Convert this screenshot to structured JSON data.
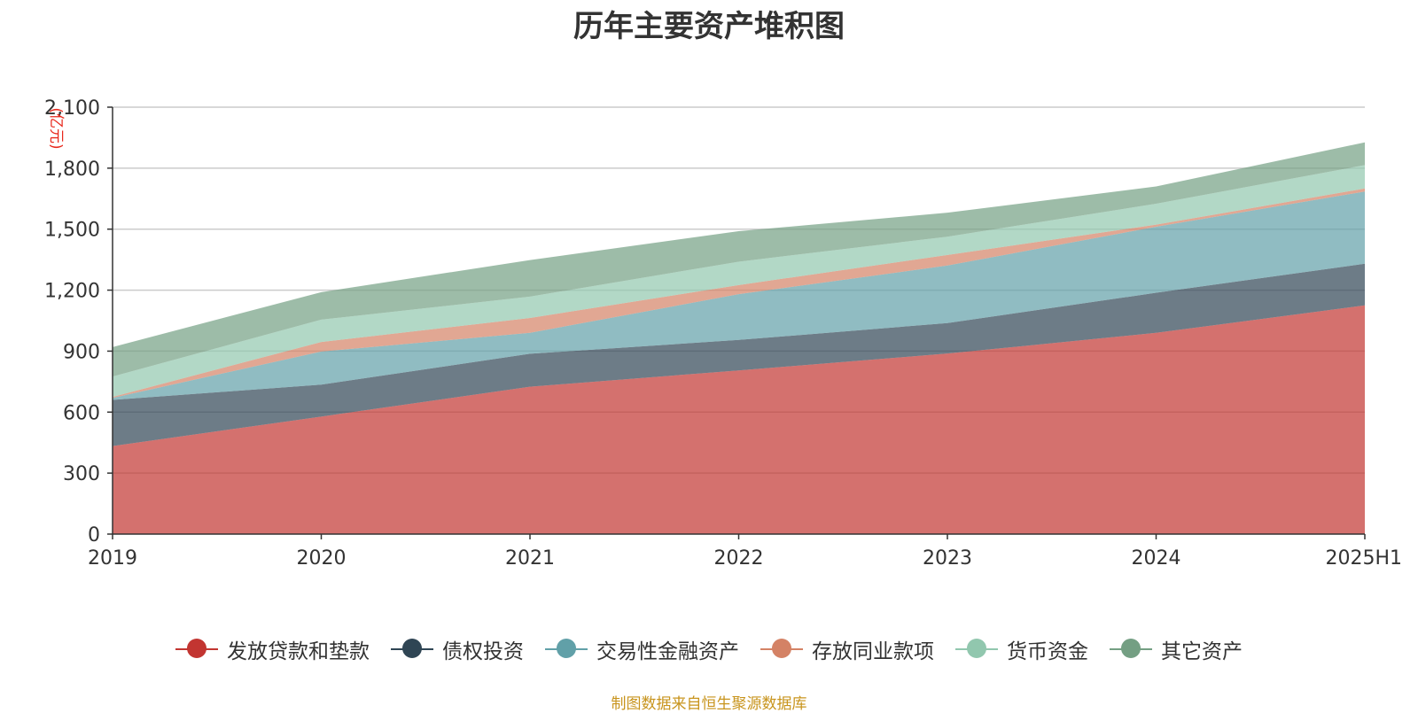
{
  "chart_data": {
    "type": "area",
    "stacked": true,
    "title": "历年主要资产堆积图",
    "unit_label": "(亿元)",
    "categories": [
      "2019",
      "2020",
      "2021",
      "2022",
      "2023",
      "2024",
      "2025H1"
    ],
    "ylim": [
      0,
      2100
    ],
    "yticks": [
      0,
      300,
      600,
      900,
      1200,
      1500,
      1800,
      2100
    ],
    "ytick_labels": [
      "0",
      "300",
      "600",
      "900",
      "1,200",
      "1,500",
      "1,800",
      "2,100"
    ],
    "grid": true,
    "legend_position": "bottom",
    "series": [
      {
        "name": "发放贷款和垫款",
        "color": "#c23531",
        "values": [
          433,
          578,
          725,
          805,
          888,
          990,
          1125
        ]
      },
      {
        "name": "债权投资",
        "color": "#2f4554",
        "values": [
          227,
          157,
          162,
          150,
          150,
          197,
          205
        ]
      },
      {
        "name": "交易性金融资产",
        "color": "#61a0a8",
        "values": [
          10,
          163,
          103,
          225,
          283,
          325,
          355
        ]
      },
      {
        "name": "存放同业款项",
        "color": "#d48265",
        "values": [
          5,
          47,
          73,
          45,
          52,
          10,
          15
        ]
      },
      {
        "name": "货币资金",
        "color": "#91c7ae",
        "values": [
          100,
          110,
          105,
          115,
          90,
          103,
          115
        ]
      },
      {
        "name": "其它资产",
        "color": "#749f83",
        "values": [
          145,
          135,
          180,
          150,
          118,
          85,
          112
        ]
      }
    ]
  },
  "source_note": "制图数据来自恒生聚源数据库"
}
